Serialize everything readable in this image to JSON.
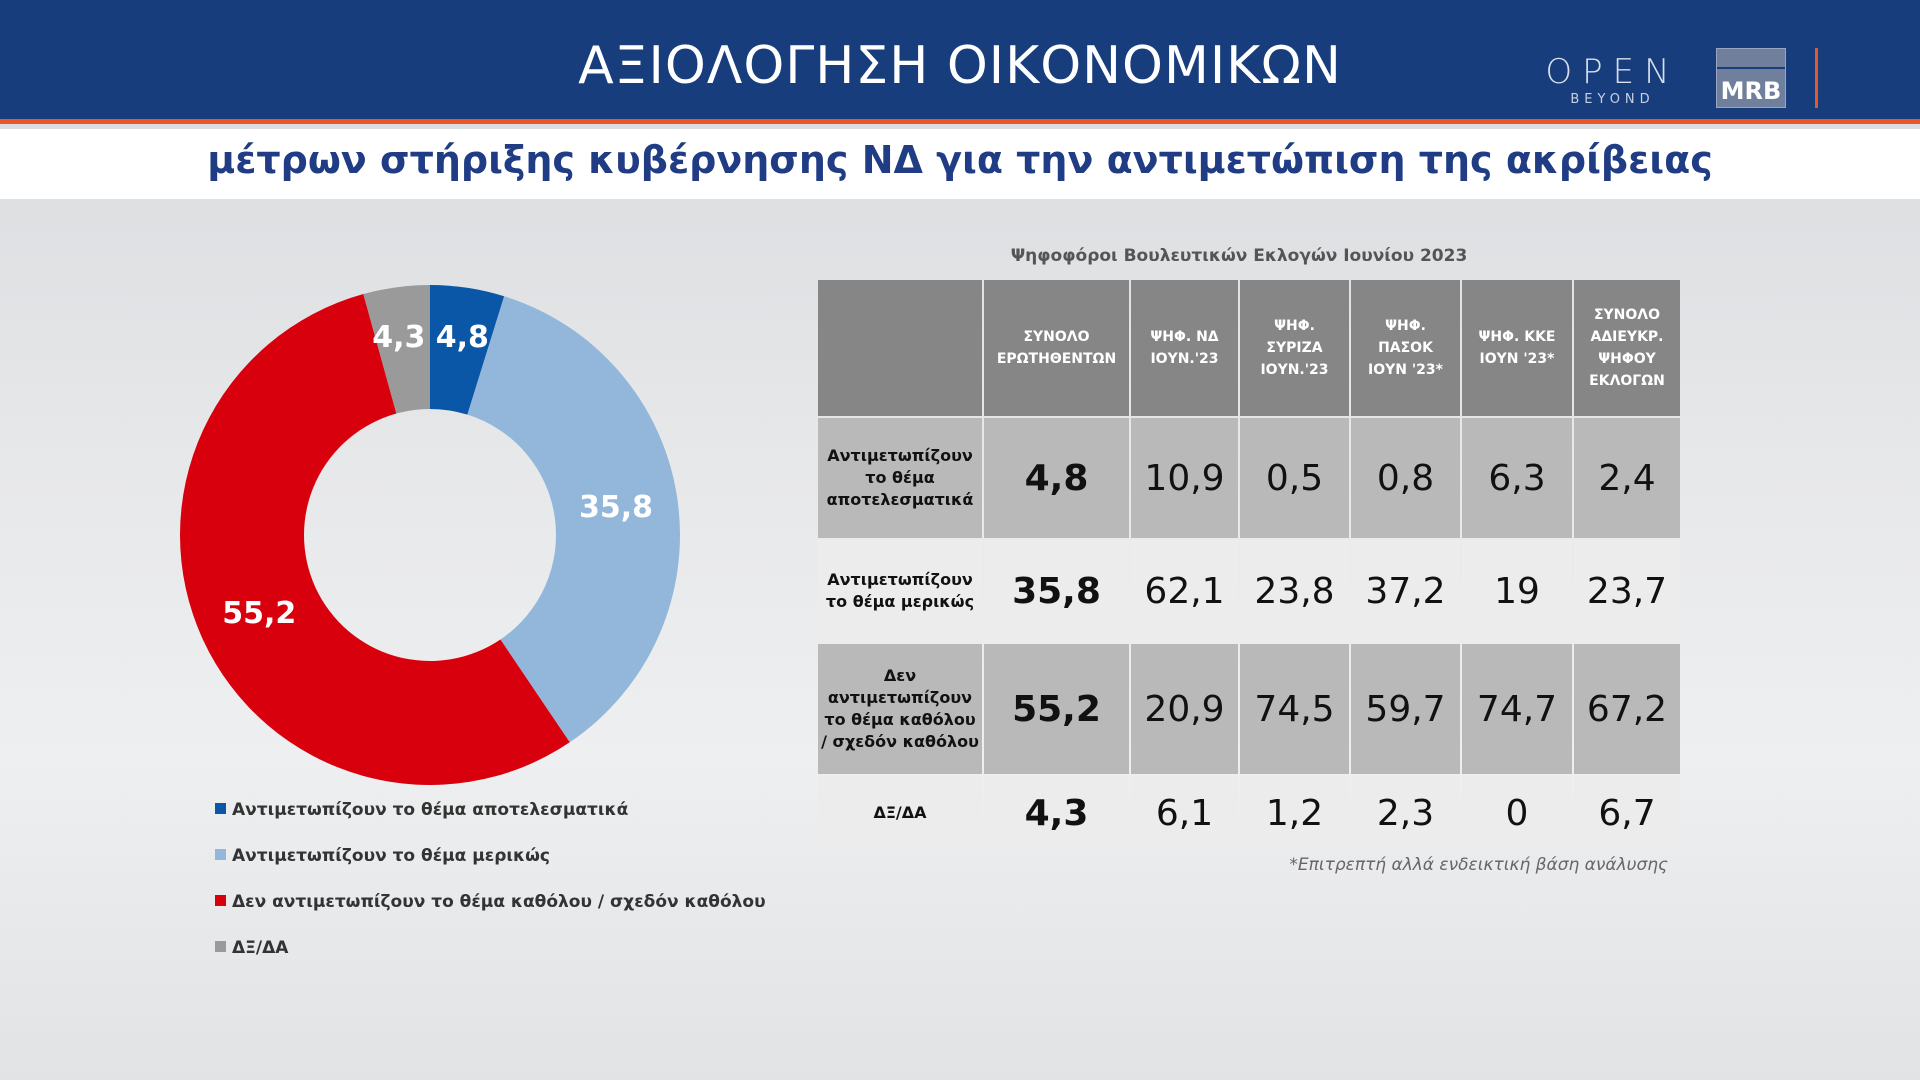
{
  "header": {
    "title": "ΑΞΙΟΛΟΓΗΣΗ ΟΙΚΟΝΟΜΙΚΩΝ",
    "subtitle": "μέτρων στήριξης κυβέρνησης ΝΔ για την αντιμετώπιση της ακρίβειας",
    "brand_open": "OPEN",
    "brand_beyond": "BEYOND",
    "brand_mrb": "MRB"
  },
  "colors": {
    "header_bg": "#173d7d",
    "accent_orange": "#e8572a",
    "effective": "#0a57a8",
    "partially": "#93b7da",
    "not_at_all": "#d9000d",
    "dk_na": "#9a9a9a"
  },
  "chart_data": [
    {
      "type": "pie",
      "variant": "donut",
      "categories": [
        "Αντιμετωπίζουν το θέμα αποτελεσματικά",
        "Αντιμετωπίζουν το θέμα μερικώς",
        "Δεν αντιμετωπίζουν το θέμα καθόλου / σχεδόν καθόλου",
        "ΔΞ/ΔΑ"
      ],
      "values": [
        4.8,
        35.8,
        55.2,
        4.3
      ],
      "value_labels": [
        "4,8",
        "35,8",
        "55,2",
        "4,3"
      ],
      "colors": [
        "#0a57a8",
        "#93b7da",
        "#d9000d",
        "#9a9a9a"
      ],
      "legend_position": "bottom-left"
    },
    {
      "type": "table",
      "caption": "Ψηφοφόροι Βουλευτικών Εκλογών Ιουνίου 2023",
      "columns": [
        "",
        "ΣΥΝΟΛΟ ΕΡΩΤΗΘΕΝΤΩΝ",
        "ΨΗΦ. ΝΔ ΙΟΥΝ.'23",
        "ΨΗΦ. ΣΥΡΙΖΑ ΙΟΥΝ.'23",
        "ΨΗΦ. ΠΑΣΟΚ ΙΟΥΝ '23*",
        "ΨΗΦ. ΚΚΕ ΙΟΥΝ '23*",
        "ΣΥΝΟΛΟ ΑΔΙΕΥΚΡ. ΨΗΦΟΥ ΕΚΛΟΓΩΝ"
      ],
      "rows": [
        {
          "label": "Αντιμετωπίζουν το θέμα αποτελεσματικά",
          "values": [
            "4,8",
            "10,9",
            "0,5",
            "0,8",
            "6,3",
            "2,4"
          ]
        },
        {
          "label": "Αντιμετωπίζουν το θέμα μερικώς",
          "values": [
            "35,8",
            "62,1",
            "23,8",
            "37,2",
            "19",
            "23,7"
          ]
        },
        {
          "label": "Δεν αντιμετωπίζουν το θέμα καθόλου / σχεδόν καθόλου",
          "values": [
            "55,2",
            "20,9",
            "74,5",
            "59,7",
            "74,7",
            "67,2"
          ]
        },
        {
          "label": "ΔΞ/ΔΑ",
          "values": [
            "4,3",
            "6,1",
            "1,2",
            "2,3",
            "0",
            "6,7"
          ]
        }
      ]
    }
  ],
  "footnote": "*Επιτρεπτή αλλά ενδεικτική βάση ανάλυσης"
}
